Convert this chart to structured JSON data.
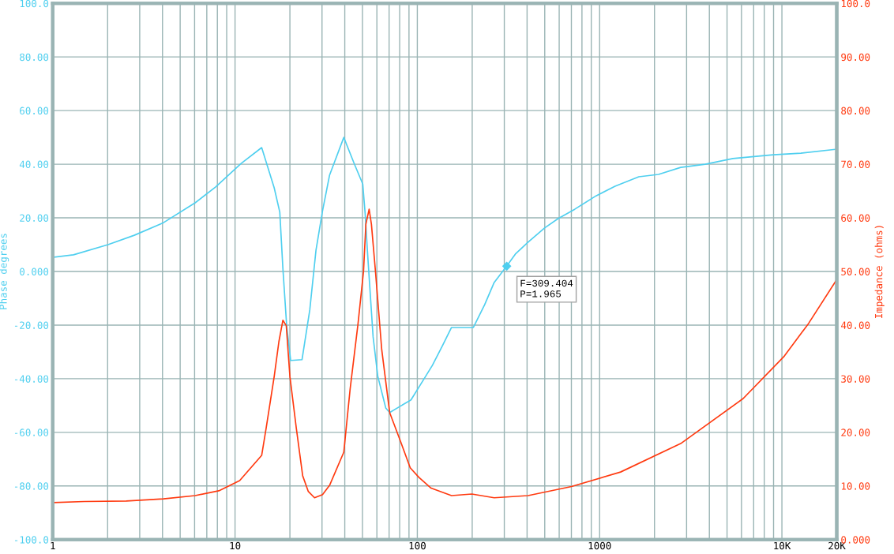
{
  "chart_data": {
    "type": "line",
    "ylabel": "Phase degrees",
    "y2label": "Impedance (ohms)",
    "log": "x",
    "grid": true,
    "marker": "none",
    "line_style": "solid",
    "xlim": [
      1,
      20000
    ],
    "xticks": [
      {
        "value": 1,
        "label": "1"
      },
      {
        "value": 2,
        "label": null
      },
      {
        "value": 3,
        "label": null
      },
      {
        "value": 4,
        "label": null
      },
      {
        "value": 5,
        "label": null
      },
      {
        "value": 6,
        "label": null
      },
      {
        "value": 7,
        "label": null
      },
      {
        "value": 8,
        "label": null
      },
      {
        "value": 9,
        "label": null
      },
      {
        "value": 10,
        "label": "10"
      },
      {
        "value": 20,
        "label": null
      },
      {
        "value": 30,
        "label": null
      },
      {
        "value": 40,
        "label": null
      },
      {
        "value": 50,
        "label": null
      },
      {
        "value": 60,
        "label": null
      },
      {
        "value": 70,
        "label": null
      },
      {
        "value": 80,
        "label": null
      },
      {
        "value": 90,
        "label": null
      },
      {
        "value": 100,
        "label": "100"
      },
      {
        "value": 200,
        "label": null
      },
      {
        "value": 300,
        "label": null
      },
      {
        "value": 400,
        "label": null
      },
      {
        "value": 500,
        "label": null
      },
      {
        "value": 600,
        "label": null
      },
      {
        "value": 700,
        "label": null
      },
      {
        "value": 800,
        "label": null
      },
      {
        "value": 900,
        "label": null
      },
      {
        "value": 1000,
        "label": "1000"
      },
      {
        "value": 2000,
        "label": null
      },
      {
        "value": 3000,
        "label": null
      },
      {
        "value": 4000,
        "label": null
      },
      {
        "value": 5000,
        "label": null
      },
      {
        "value": 6000,
        "label": null
      },
      {
        "value": 7000,
        "label": null
      },
      {
        "value": 8000,
        "label": null
      },
      {
        "value": 9000,
        "label": null
      },
      {
        "value": 10000,
        "label": "10K"
      },
      {
        "value": 20000,
        "label": "20K"
      }
    ],
    "ylim": [
      -100,
      100
    ],
    "yticks": [
      {
        "value": -100,
        "label": "-100.0"
      },
      {
        "value": -80,
        "label": "-80.00"
      },
      {
        "value": -60,
        "label": "-60.00"
      },
      {
        "value": -40,
        "label": "-40.00"
      },
      {
        "value": -20,
        "label": "-20.00"
      },
      {
        "value": 0,
        "label": "0.000"
      },
      {
        "value": 20,
        "label": "20.00"
      },
      {
        "value": 40,
        "label": "40.00"
      },
      {
        "value": 60,
        "label": "60.00"
      },
      {
        "value": 80,
        "label": "80.00"
      },
      {
        "value": 100,
        "label": "100.0"
      }
    ],
    "y2lim": [
      0,
      100
    ],
    "y2ticks": [
      {
        "value": 0,
        "label": "0.000"
      },
      {
        "value": 10,
        "label": "10.00"
      },
      {
        "value": 20,
        "label": "20.00"
      },
      {
        "value": 30,
        "label": "30.00"
      },
      {
        "value": 40,
        "label": "40.00"
      },
      {
        "value": 50,
        "label": "50.00"
      },
      {
        "value": 60,
        "label": "60.00"
      },
      {
        "value": 70,
        "label": "70.00"
      },
      {
        "value": 80,
        "label": "80.00"
      },
      {
        "value": 90,
        "label": "90.00"
      },
      {
        "value": 100,
        "label": "100.0"
      }
    ],
    "series": [
      {
        "color": "#4fcfef",
        "x": [
          1,
          1.3,
          2.01,
          2.8,
          4.05,
          6.04,
          7.83,
          10.8,
          14.0,
          16.4,
          17.6,
          18.3,
          19.2,
          20.2,
          23.3,
          25.7,
          27.8,
          30.2,
          33.0,
          39.5,
          45.0,
          50.2,
          51.7,
          53.3,
          57.2,
          60.7,
          67.1,
          70.5,
          92.3,
          109,
          121,
          138,
          154,
          203,
          234,
          264,
          309,
          345,
          405,
          499,
          592,
          730,
          956,
          1215,
          1640,
          2105,
          2784,
          3795,
          5383,
          8961,
          12710,
          20000
        ],
        "values": [
          5.3,
          6.2,
          10.0,
          13.5,
          18.2,
          25.6,
          31.5,
          40.3,
          46.2,
          31.2,
          22.1,
          1.2,
          -20.3,
          -33.2,
          -32.9,
          -14.4,
          7.9,
          22.6,
          35.9,
          50.0,
          40.3,
          32.6,
          21.8,
          7.1,
          -24.4,
          -39.1,
          -50.9,
          -52.6,
          -47.9,
          -40.0,
          -35.0,
          -27.4,
          -20.9,
          -20.9,
          -12.4,
          -4.1,
          2.0,
          6.5,
          10.9,
          16.2,
          19.7,
          23.2,
          28.2,
          31.8,
          35.3,
          36.2,
          38.8,
          40.0,
          42.1,
          43.5,
          44.1,
          45.6
        ]
      },
      {
        "color": "#ff3a10",
        "axis": "y2",
        "x": [
          1,
          1.49,
          2.53,
          4.05,
          6.04,
          8.15,
          10.6,
          14.0,
          14.8,
          16.4,
          17.4,
          18.3,
          19.1,
          20.0,
          21.7,
          23.5,
          25.2,
          27.3,
          30.2,
          33.0,
          39.5,
          42.8,
          47.3,
          50.7,
          52.2,
          54.4,
          56.0,
          58.9,
          63.8,
          70.5,
          81.1,
          91.4,
          102,
          119,
          154,
          199,
          264,
          405,
          701,
          1303,
          2784,
          6131,
          10300,
          14000,
          20000
        ],
        "values": [
          6.9,
          7.1,
          7.2,
          7.6,
          8.2,
          9.1,
          11.0,
          15.7,
          20.7,
          30.4,
          36.9,
          40.9,
          39.9,
          30.4,
          20.7,
          11.9,
          9.0,
          7.8,
          8.4,
          10.1,
          16.3,
          28.1,
          40.3,
          50.1,
          58.8,
          61.6,
          58.8,
          50.1,
          35.4,
          23.7,
          18.2,
          13.4,
          11.6,
          9.6,
          8.2,
          8.5,
          7.8,
          8.2,
          9.9,
          12.6,
          17.9,
          26.3,
          34.2,
          40.3,
          48.5
        ]
      }
    ],
    "annotations": [
      {
        "text": "F=309.404\nP=1.965",
        "x": 309.404,
        "y": 1.965
      }
    ]
  }
}
